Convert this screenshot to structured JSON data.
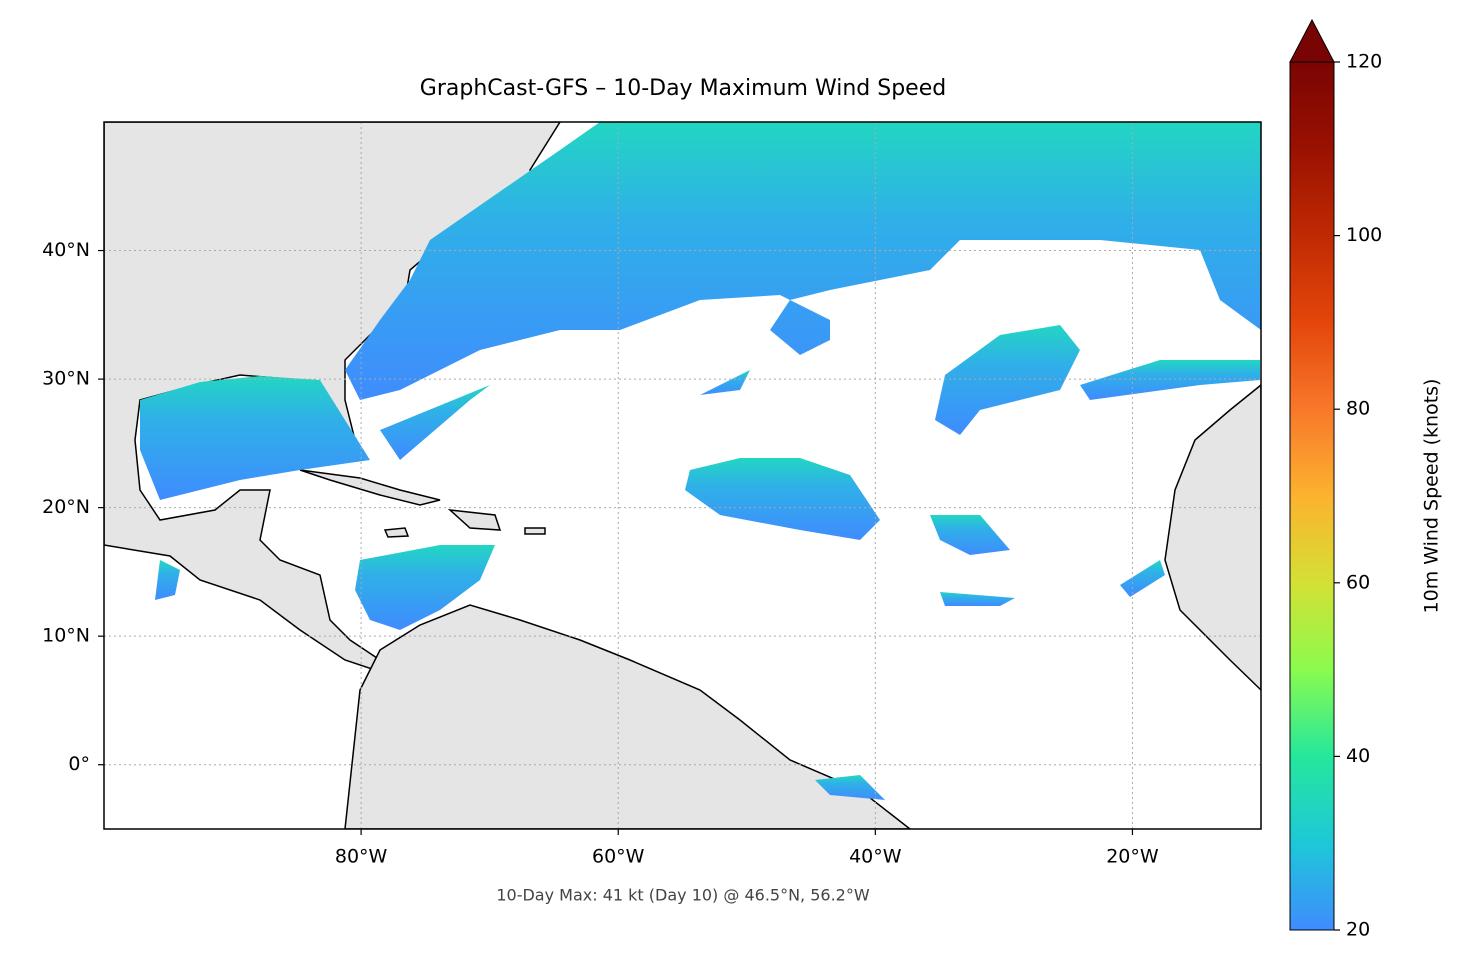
{
  "map": {
    "title": "GraphCast-GFS – 10-Day Maximum Wind Speed",
    "annotation": "10-Day Max: 41 kt (Day 10) @ 46.5°N, 56.2°W",
    "xlim": [
      -100,
      -10
    ],
    "ylim": [
      -5,
      50
    ],
    "xticks": [
      {
        "value": -80,
        "label": "80°W"
      },
      {
        "value": -60,
        "label": "60°W"
      },
      {
        "value": -40,
        "label": "40°W"
      },
      {
        "value": -20,
        "label": "20°W"
      }
    ],
    "yticks": [
      {
        "value": 0,
        "label": "0°"
      },
      {
        "value": 10,
        "label": "10°N"
      },
      {
        "value": 20,
        "label": "20°N"
      },
      {
        "value": 30,
        "label": "30°N"
      },
      {
        "value": 40,
        "label": "40°N"
      }
    ],
    "grid": true,
    "colorbar": {
      "label": "10m Wind Speed (knots)",
      "lim": [
        20,
        120
      ],
      "ticks": [
        20,
        40,
        60,
        80,
        100,
        120
      ],
      "colors": [
        "#3f8cfe",
        "#1ec8d8",
        "#25e79c",
        "#8bfb4e",
        "#d4e035",
        "#fcb22f",
        "#f8782a",
        "#e4460b",
        "#c02a03",
        "#9a1101",
        "#7a0403"
      ]
    }
  }
}
